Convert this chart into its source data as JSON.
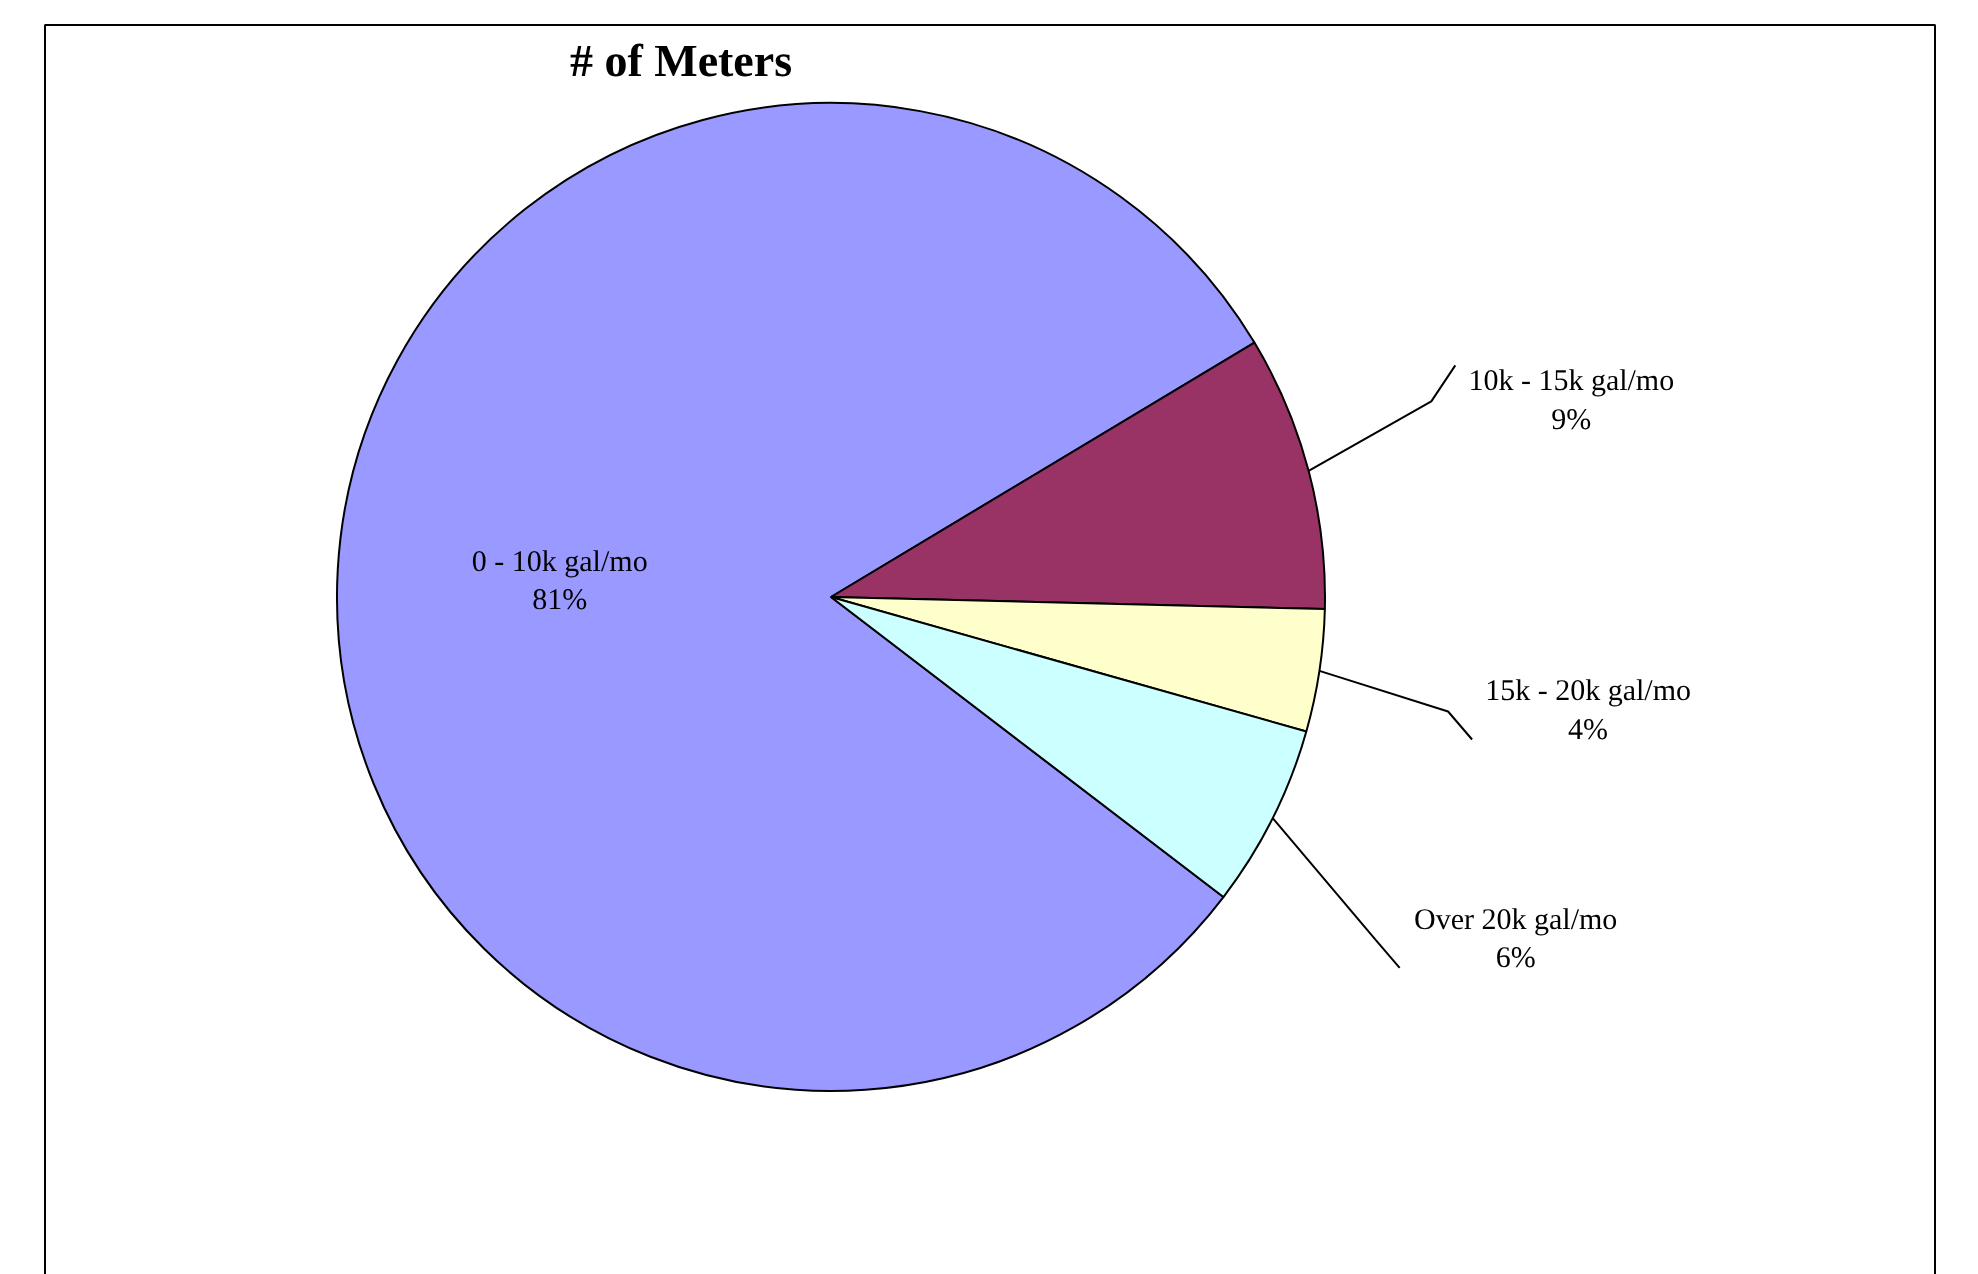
{
  "chart_data": {
    "type": "pie",
    "title": "# of Meters",
    "categories": [
      "0 - 10k gal/mo",
      "10k - 15k gal/mo",
      "15k - 20k gal/mo",
      "Over 20k gal/mo"
    ],
    "values": [
      81,
      9,
      4,
      6
    ],
    "value_labels": [
      "81%",
      "9%",
      "4%",
      "6%"
    ],
    "colors": [
      "#9999ff",
      "#993366",
      "#ffffcc",
      "#ccffff"
    ]
  }
}
